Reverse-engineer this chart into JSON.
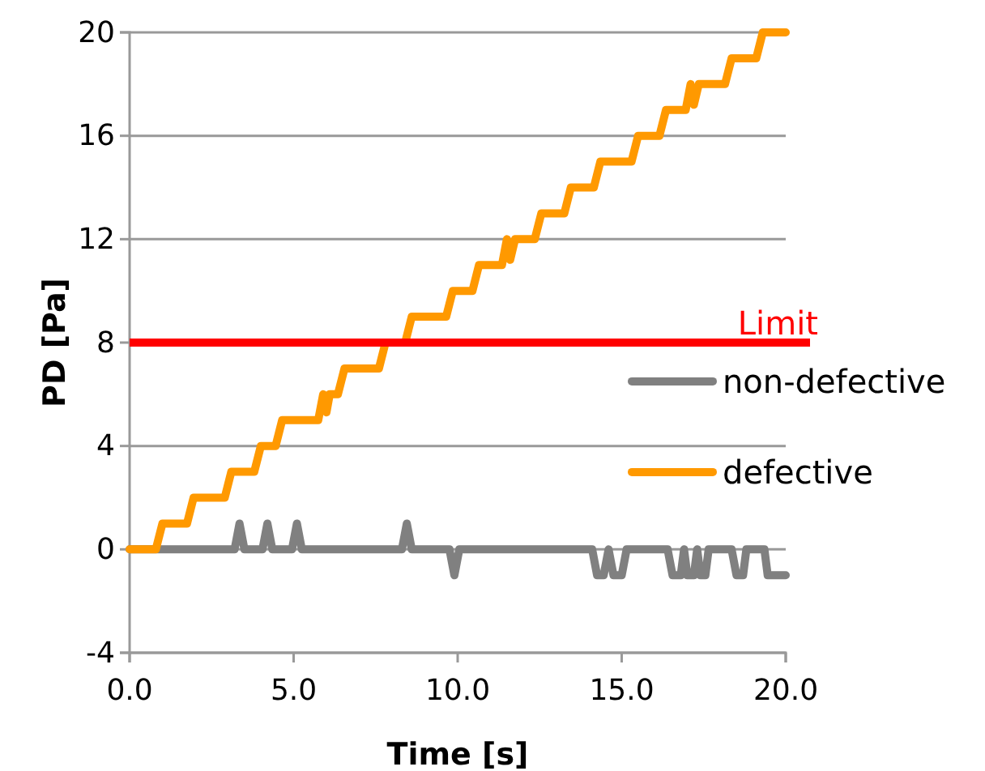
{
  "chart_data": {
    "type": "line",
    "xlabel": "Time [s]",
    "ylabel": "PD [Pa]",
    "xlim": [
      0,
      20
    ],
    "xticks": [
      {
        "value": 0,
        "label": "0.0"
      },
      {
        "value": 5,
        "label": "5.0"
      },
      {
        "value": 10,
        "label": "10.0"
      },
      {
        "value": 15,
        "label": "15.0"
      },
      {
        "value": 20,
        "label": "20.0"
      }
    ],
    "ylim": [
      -4,
      20
    ],
    "yticks": [
      -4,
      0,
      4,
      8,
      12,
      16,
      20
    ],
    "grid": "y",
    "legend": "right",
    "line_style": "solid",
    "marker": "none",
    "ref_lines": [
      {
        "axis": "y",
        "value": 8,
        "label": "Limit",
        "color": "#ff0000"
      }
    ],
    "series": [
      {
        "name": "non-defective",
        "color": "#808080",
        "x": [
          0,
          3.2,
          3.35,
          3.5,
          4.05,
          4.2,
          4.35,
          4.95,
          5.1,
          5.25,
          8.3,
          8.45,
          8.6,
          9.75,
          9.9,
          10.05,
          14.1,
          14.25,
          14.45,
          14.6,
          14.75,
          15.0,
          15.15,
          16.4,
          16.55,
          16.8,
          16.9,
          17.0,
          17.2,
          17.3,
          17.4,
          17.55,
          17.65,
          18.35,
          18.5,
          18.7,
          18.8,
          19.35,
          19.45,
          20
        ],
        "values": [
          0,
          0,
          1,
          0,
          0,
          1,
          0,
          0,
          1,
          0,
          0,
          1,
          0,
          0,
          -1,
          0,
          0,
          -1,
          -1,
          0,
          -1,
          -1,
          0,
          0,
          -1,
          -1,
          0,
          -1,
          -1,
          0,
          -1,
          -1,
          0,
          0,
          -1,
          -1,
          0,
          0,
          -1,
          -1
        ]
      },
      {
        "name": "defective",
        "color": "#ff9900",
        "x": [
          0,
          0.8,
          1.0,
          1.75,
          1.95,
          2.9,
          3.1,
          3.8,
          4.0,
          4.45,
          4.65,
          5.75,
          5.9,
          6.0,
          6.1,
          6.35,
          6.55,
          7.6,
          7.8,
          8.4,
          8.6,
          9.65,
          9.85,
          10.45,
          10.65,
          11.35,
          11.5,
          11.6,
          11.75,
          12.35,
          12.55,
          13.25,
          13.45,
          14.15,
          14.35,
          15.3,
          15.5,
          16.15,
          16.35,
          16.95,
          17.1,
          17.2,
          17.35,
          18.15,
          18.35,
          19.1,
          19.3,
          20
        ],
        "values": [
          0,
          0,
          1,
          1,
          2,
          2,
          3,
          3,
          4,
          4,
          5,
          5,
          6,
          5.3,
          6,
          6,
          7,
          7,
          8,
          8,
          9,
          9,
          10,
          10,
          11,
          11,
          12,
          11.2,
          12,
          12,
          13,
          13,
          14,
          14,
          15,
          15,
          16,
          16,
          17,
          17,
          18,
          17.2,
          18,
          18,
          19,
          19,
          20,
          20
        ]
      }
    ]
  }
}
